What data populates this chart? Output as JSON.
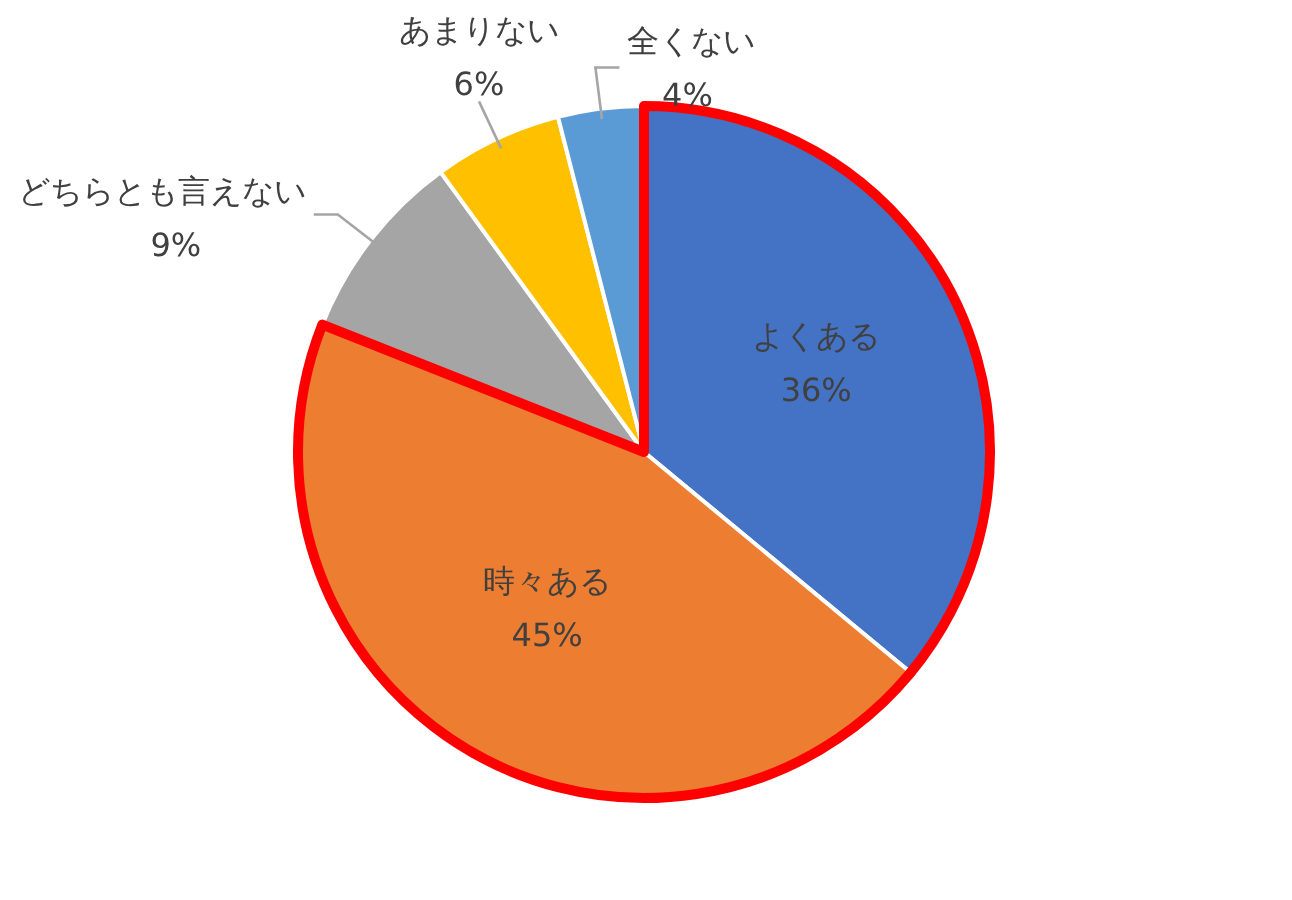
{
  "chart_data": {
    "type": "pie",
    "categories": [
      "よくある",
      "時々ある",
      "どちらとも言えない",
      "あまりない",
      "全くない"
    ],
    "values": [
      36,
      45,
      9,
      6,
      4
    ],
    "colors": [
      "#4472c4",
      "#ed7d31",
      "#a5a5a5",
      "#ffc000",
      "#5b9bd5"
    ],
    "value_labels": [
      "36%",
      "45%",
      "9%",
      "6%",
      "4%"
    ]
  }
}
